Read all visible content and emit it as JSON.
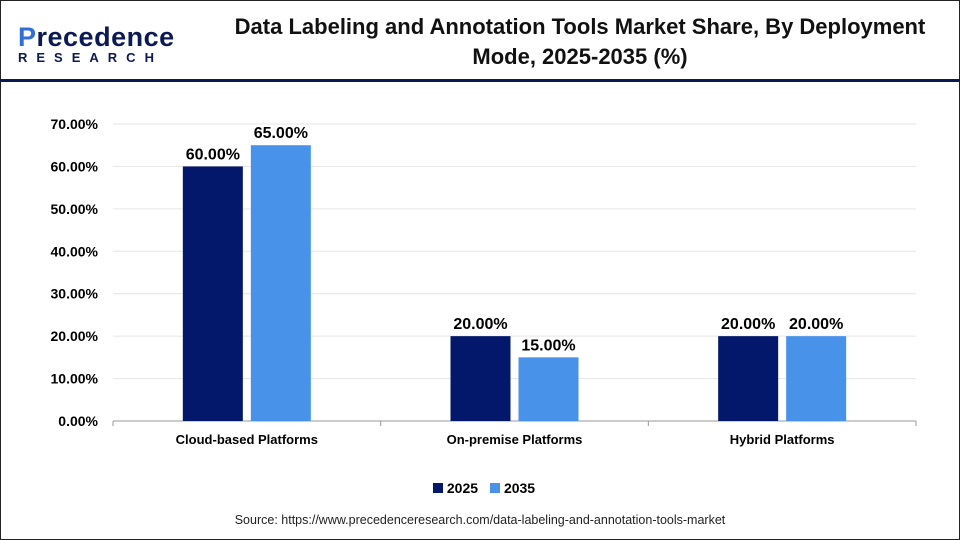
{
  "logo": {
    "line1_a": "P",
    "line1_b": "recedence",
    "line2": "RESEARCH"
  },
  "title": "Data Labeling and Annotation Tools Market Share, By Deployment Mode, 2025-2035 (%)",
  "source": "Source: https://www.precedenceresearch.com/data-labeling-and-annotation-tools-market",
  "chart_data": {
    "type": "bar",
    "title": "Data Labeling and Annotation Tools Market Share, By Deployment Mode, 2025-2035 (%)",
    "categories": [
      "Cloud-based Platforms",
      "On-premise Platforms",
      "Hybrid Platforms"
    ],
    "series": [
      {
        "name": "2025",
        "values": [
          60,
          20,
          20
        ],
        "color": "#03186a"
      },
      {
        "name": "2035",
        "values": [
          65,
          15,
          20
        ],
        "color": "#4992ea"
      }
    ],
    "ylim": [
      0,
      70
    ],
    "yticks": [
      "0.00%",
      "10.00%",
      "20.00%",
      "30.00%",
      "40.00%",
      "50.00%",
      "60.00%",
      "70.00%"
    ],
    "grid": true,
    "legend": "bottom"
  }
}
